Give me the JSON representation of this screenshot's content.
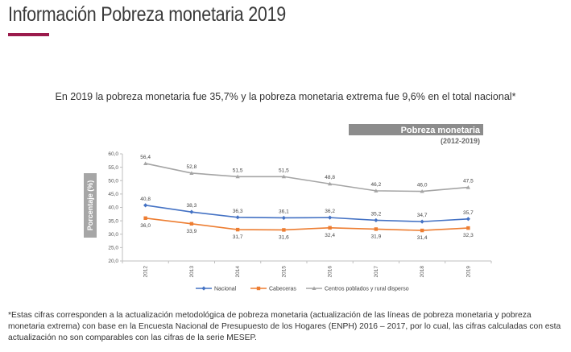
{
  "page": {
    "title": "Información Pobreza monetaria 2019",
    "headline": "En 2019 la pobreza monetaria fue 35,7% y la pobreza monetaria extrema fue 9,6% en el total nacional*",
    "footnote": "*Estas cifras corresponden a la actualización metodológica de pobreza monetaria (actualización de las líneas de pobreza monetaria y pobreza monetaria extrema) con base en la Encuesta Nacional de Presupuesto de los Hogares (ENPH) 2016 – 2017, por lo cual, las cifras calculadas con esta actualización no son comparables con las cifras de la serie MESEP.",
    "accent_color": "#9b1b4c"
  },
  "chart_data": {
    "type": "line",
    "title": "Pobreza monetaria",
    "subtitle": "(2012-2019)",
    "ylabel": "Porcentaje (%)",
    "xlabel": "",
    "ylim": [
      20,
      60
    ],
    "yticks": [
      "20,0",
      "25,0",
      "30,0",
      "35,0",
      "40,0",
      "45,0",
      "50,0",
      "55,0",
      "60,0"
    ],
    "categories": [
      "2012",
      "2013",
      "2014",
      "2015",
      "2016",
      "2017",
      "2018",
      "2019"
    ],
    "grid": false,
    "legend_position": "bottom",
    "series": [
      {
        "name": "Nacional",
        "color": "#4472c4",
        "values": [
          40.8,
          38.3,
          36.3,
          36.1,
          36.2,
          35.2,
          34.7,
          35.7
        ],
        "labels": [
          "40,8",
          "38,3",
          "36,3",
          "36,1",
          "36,2",
          "35,2",
          "34,7",
          "35,7"
        ],
        "label_position": "above"
      },
      {
        "name": "Cabeceras",
        "color": "#ed7d31",
        "values": [
          36.0,
          33.9,
          31.7,
          31.6,
          32.4,
          31.9,
          31.4,
          32.3
        ],
        "labels": [
          "36,0",
          "33,9",
          "31,7",
          "31,6",
          "32,4",
          "31,9",
          "31,4",
          "32,3"
        ],
        "label_position": "below"
      },
      {
        "name": "Centros poblados y rural disperso",
        "color": "#a5a5a5",
        "values": [
          56.4,
          52.8,
          51.5,
          51.5,
          48.8,
          46.2,
          46.0,
          47.5
        ],
        "labels": [
          "56,4",
          "52,8",
          "51,5",
          "51,5",
          "48,8",
          "46,2",
          "46,0",
          "47,5"
        ],
        "label_position": "above"
      }
    ]
  }
}
